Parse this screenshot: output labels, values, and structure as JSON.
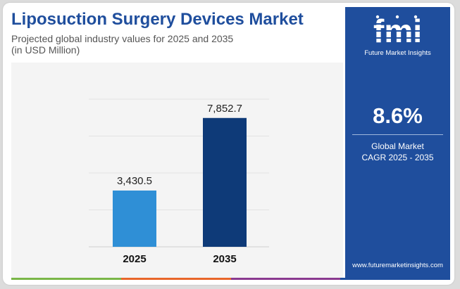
{
  "header": {
    "title": "Liposuction Surgery Devices Market",
    "subtitle_line1": "Projected global industry values for 2025 and 2035",
    "subtitle_line2": "(in USD Million)"
  },
  "side_panel": {
    "brand_letters": "fmi",
    "brand_name": "Future Market Insights",
    "cagr_value": "8.6%",
    "cagr_label_line1": "Global Market",
    "cagr_label_line2": "CAGR 2025 - 2035",
    "website": "www.futuremarketinsights.com"
  },
  "colors": {
    "title": "#1f4e9d",
    "panel": "#1f4e9d",
    "bar_2025": "#2f8fd6",
    "bar_2035": "#0e3a78",
    "strip": [
      "#7ab648",
      "#e8662a",
      "#8a3a8f",
      "#1f4e9d"
    ]
  },
  "chart_data": {
    "type": "bar",
    "categories": [
      "2025",
      "2035"
    ],
    "values": [
      3430.5,
      7852.7
    ],
    "value_labels": [
      "3,430.5",
      "7,852.7"
    ],
    "ylim": [
      0,
      9000
    ],
    "grid": true,
    "legend": "none"
  }
}
